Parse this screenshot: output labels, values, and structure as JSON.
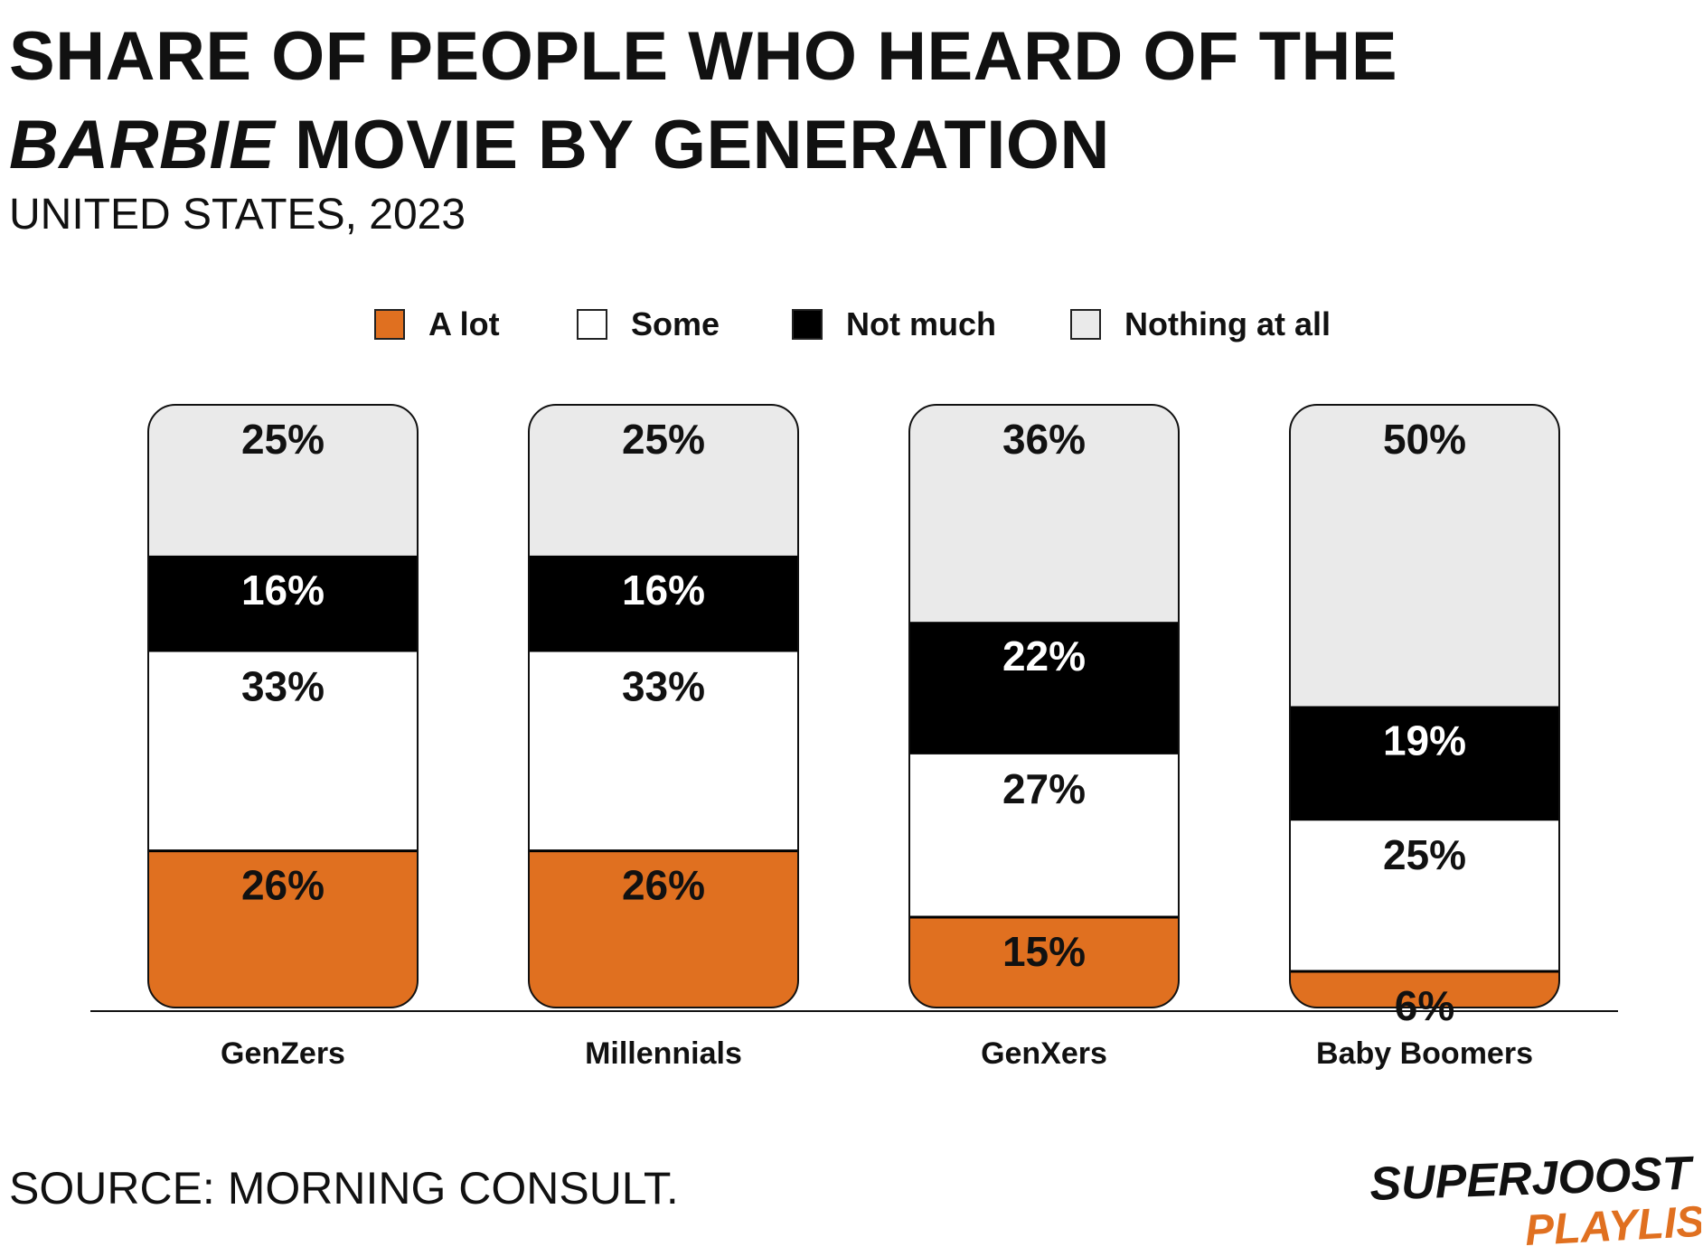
{
  "title": {
    "part1": "SHARE OF PEOPLE WHO HEARD OF THE ",
    "italic": "BARBIE",
    "part2": " MOVIE BY GENERATION"
  },
  "subtitle": "UNITED STATES, 2023",
  "source": "SOURCE: MORNING CONSULT.",
  "logo": {
    "line1": "SUPERJOOST",
    "line2": "PLAYLIST"
  },
  "colors": {
    "a_lot": "#E07020",
    "some": "#FFFFFF",
    "not_much": "#000000",
    "nothing_at_all": "#EAEAEA",
    "text": "#111111",
    "logo_black": "#111111",
    "logo_orange": "#E07020"
  },
  "chart_data": {
    "type": "bar",
    "stacked": true,
    "stack_mode": "percent",
    "categories": [
      "GenZers",
      "Millennials",
      "GenXers",
      "Baby Boomers"
    ],
    "series": [
      {
        "name": "A lot",
        "values": [
          26,
          26,
          15,
          6
        ]
      },
      {
        "name": "Some",
        "values": [
          33,
          33,
          27,
          25
        ]
      },
      {
        "name": "Not much",
        "values": [
          16,
          16,
          22,
          19
        ]
      },
      {
        "name": "Nothing at all",
        "values": [
          25,
          25,
          36,
          50
        ]
      }
    ],
    "value_suffix": "%",
    "ylim": [
      0,
      100
    ],
    "grid": false,
    "legend_position": "top-center",
    "xlabel": "",
    "ylabel": ""
  }
}
